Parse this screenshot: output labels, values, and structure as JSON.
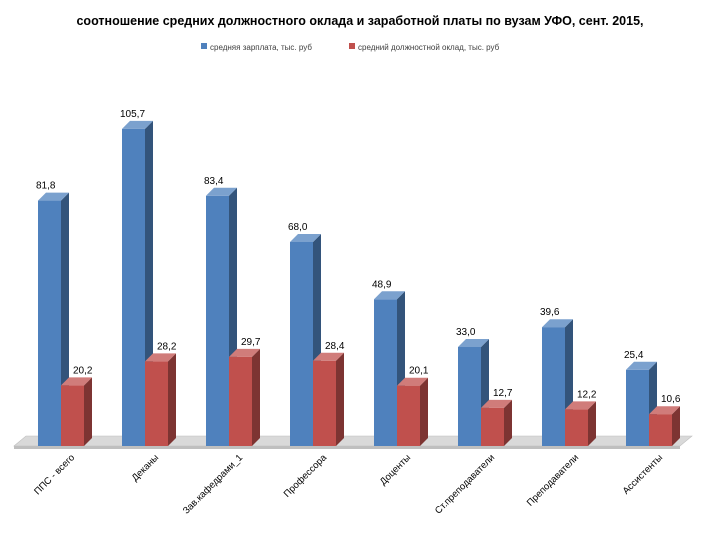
{
  "chart_data": {
    "type": "bar",
    "title": "соотношение средних должностного оклада и заработной платы по вузам УФО, сент. 2015,",
    "xlabel": "",
    "ylabel": "",
    "ylim": [
      0,
      120
    ],
    "grid": false,
    "legend_position": "top",
    "categories": [
      "ППС - всего",
      "Деканы",
      "Зав.кафедрами_1",
      "Профессора",
      "Доценты",
      "Ст.преподаватели",
      "Преподаватели",
      "Ассистенты"
    ],
    "series": [
      {
        "name": "средняя зарплата, тыс. руб",
        "color": "#4F81BD",
        "values": [
          81.8,
          105.7,
          83.4,
          68.0,
          48.9,
          33.0,
          39.6,
          25.4
        ],
        "labels": [
          "81,8",
          "105,7",
          "83,4",
          "68,0",
          "48,9",
          "33,0",
          "39,6",
          "25,4"
        ]
      },
      {
        "name": "средний должностной оклад, тыс. руб",
        "color": "#C0504D",
        "values": [
          20.2,
          28.2,
          29.7,
          28.4,
          20.1,
          12.7,
          12.2,
          10.6
        ],
        "labels": [
          "20,2",
          "28,2",
          "29,7",
          "28,4",
          "20,1",
          "12,7",
          "12,2",
          "10,6"
        ]
      }
    ]
  }
}
